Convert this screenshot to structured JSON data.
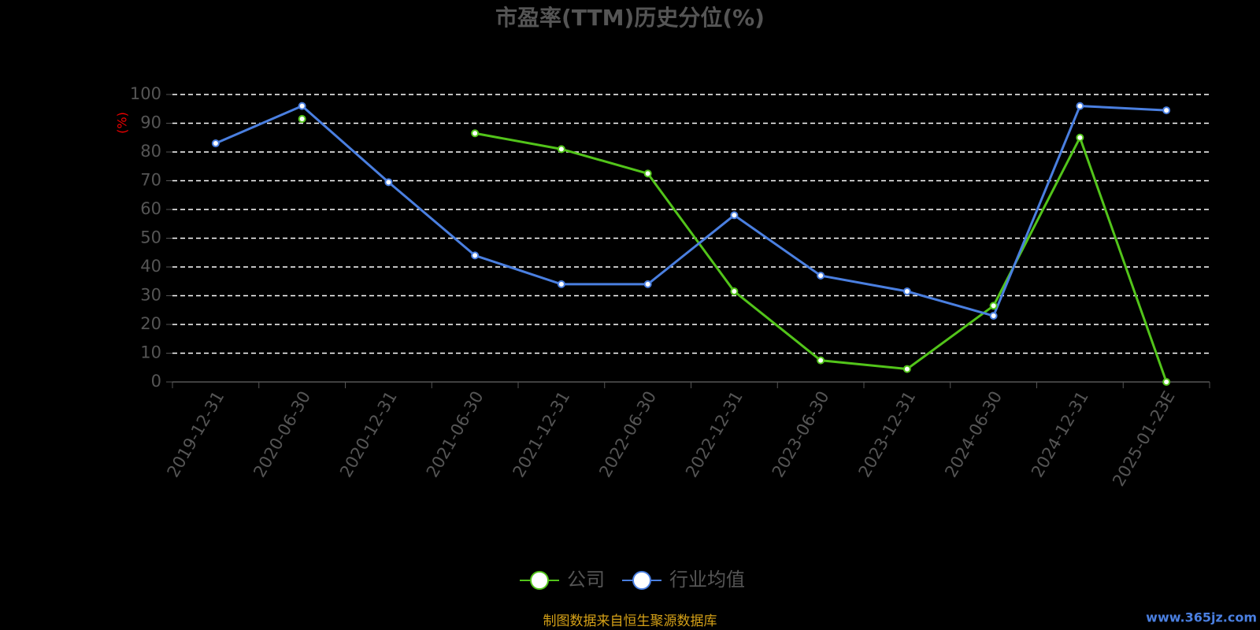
{
  "chart_data": {
    "type": "line",
    "title": "市盈率(TTM)历史分位(%)",
    "y_label": "(%)",
    "categories": [
      "2019-12-31",
      "2020-06-30",
      "2020-12-31",
      "2021-06-30",
      "2021-12-31",
      "2022-06-30",
      "2022-12-31",
      "2023-06-30",
      "2023-12-31",
      "2024-06-30",
      "2024-12-31",
      "2025-01-23E"
    ],
    "series": [
      {
        "name": "公司",
        "color": "#52c41a",
        "values": [
          null,
          91.5,
          null,
          86.5,
          81,
          72.5,
          31.5,
          7.5,
          4.5,
          26.5,
          85,
          0
        ]
      },
      {
        "name": "行业均值",
        "color": "#4a7fe0",
        "values": [
          83,
          96,
          69.5,
          44,
          34,
          34,
          58,
          37,
          31.5,
          23,
          96,
          94.5
        ]
      }
    ],
    "ylim": [
      0,
      100
    ],
    "yticks": [
      0,
      10,
      20,
      30,
      40,
      50,
      60,
      70,
      80,
      90,
      100
    ],
    "grid": true,
    "source": "制图数据来自恒生聚源数据库",
    "watermark": "www.365jz.com"
  }
}
